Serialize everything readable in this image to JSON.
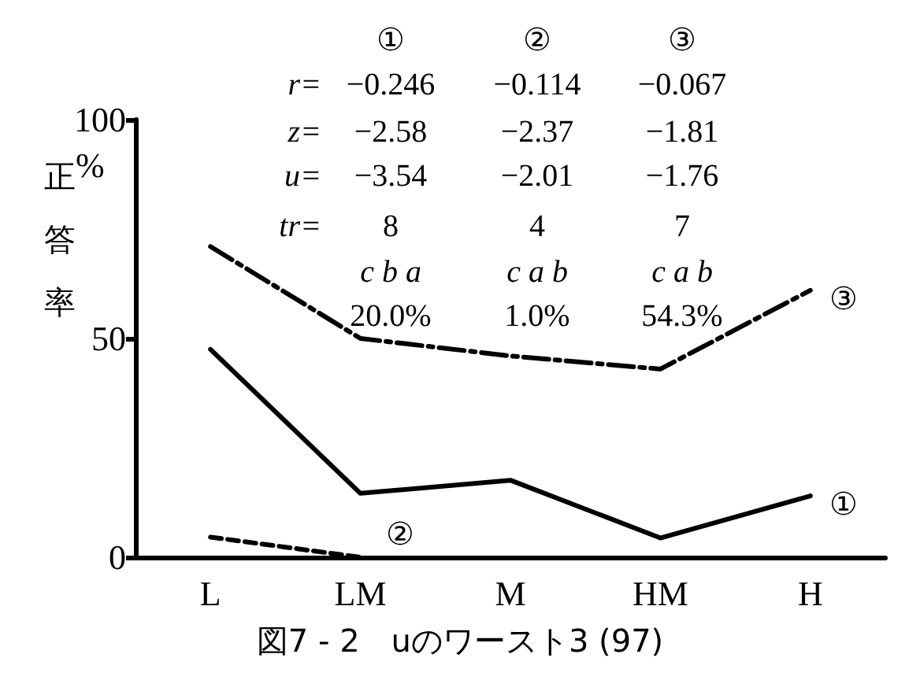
{
  "chart_data": {
    "type": "line",
    "title": "図7 - 2　uのワースト3 (97)",
    "ylabel": "正答率",
    "annotations": [
      "%",
      "①  ②  ③",
      "r=  −0.246  −0.114  −0.067",
      "z=  −2.58  −2.37  −1.81",
      "u=  −3.54  −2.01  −1.76",
      "tr=  8  4  7",
      "c b a  c a b  c a b",
      "20.0%  1.0%  54.3%"
    ],
    "categories": [
      "L",
      "LM",
      "M",
      "HM",
      "H"
    ],
    "series": [
      {
        "name": "①",
        "color": "#000000",
        "line_style": "solid",
        "values": [
          47.5,
          14.6,
          17.6,
          4.4,
          14
        ]
      },
      {
        "name": "②",
        "color": "#000000",
        "line_style": "dashed",
        "values": [
          4.6,
          0,
          null,
          null,
          null
        ]
      },
      {
        "name": "③",
        "color": "#000000",
        "line_style": "dashdot",
        "values": [
          71,
          50,
          46,
          43,
          61
        ]
      }
    ],
    "ylim": [
      0,
      100
    ],
    "yticks": [
      0,
      50,
      100
    ],
    "legend": false,
    "grid": false,
    "marker": "none"
  }
}
